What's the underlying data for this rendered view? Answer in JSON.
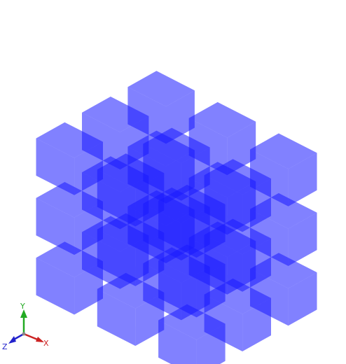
{
  "viewer": {
    "background": "#ffffff",
    "cube_color": "#1a1aff",
    "cube_opacity": 0.55,
    "grid": {
      "nx": 3,
      "ny": 3,
      "nz": 3
    }
  },
  "axes_triad": {
    "x": {
      "label": "X",
      "color": "#cc2222"
    },
    "y": {
      "label": "Y",
      "color": "#22aa22"
    },
    "z": {
      "label": "Z",
      "color": "#2222cc"
    }
  }
}
